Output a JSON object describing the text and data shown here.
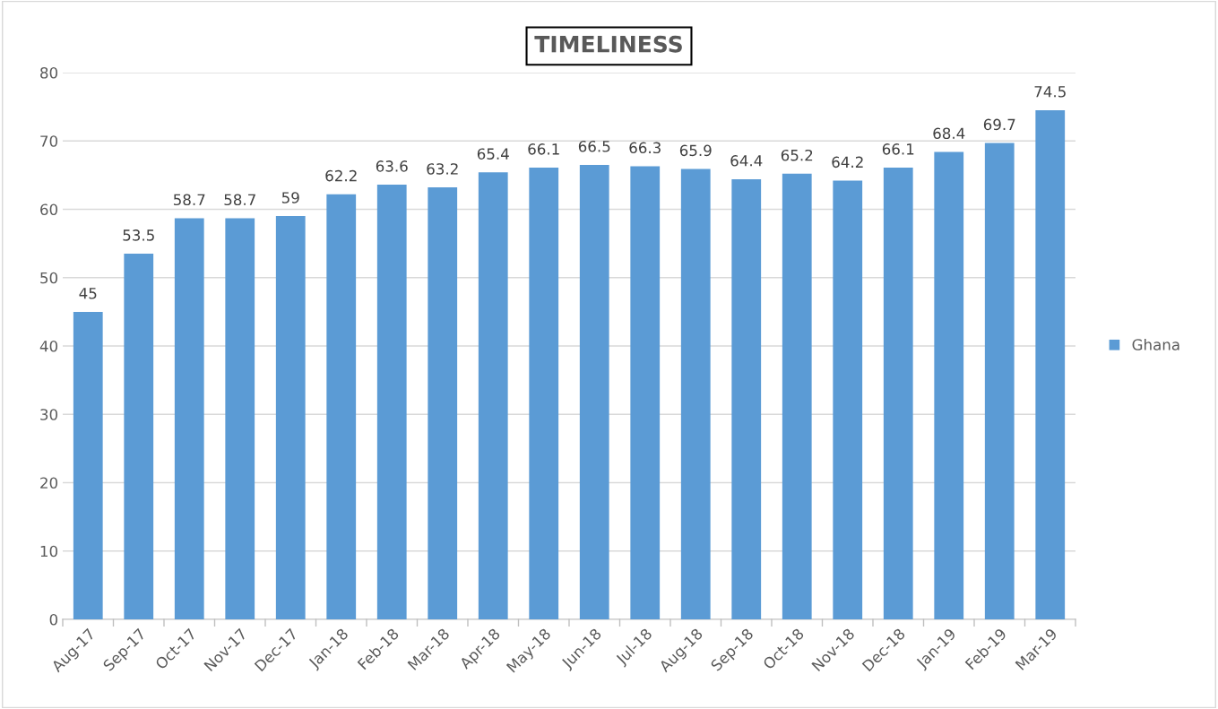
{
  "chart_data": {
    "type": "bar",
    "title": "TIMELINESS",
    "categories": [
      "Aug-17",
      "Sep-17",
      "Oct-17",
      "Nov-17",
      "Dec-17",
      "Jan-18",
      "Feb-18",
      "Mar-18",
      "Apr-18",
      "May-18",
      "Jun-18",
      "Jul-18",
      "Aug-18",
      "Sep-18",
      "Oct-18",
      "Nov-18",
      "Dec-18",
      "Jan-19",
      "Feb-19",
      "Mar-19"
    ],
    "series": [
      {
        "name": "Ghana",
        "color": "#5b9bd5",
        "values": [
          45,
          53.5,
          58.7,
          58.7,
          59,
          62.2,
          63.6,
          63.2,
          65.4,
          66.1,
          66.5,
          66.3,
          65.9,
          64.4,
          65.2,
          64.2,
          66.1,
          68.4,
          69.7,
          74.5
        ]
      }
    ],
    "ylim": [
      0,
      80
    ],
    "yticks": [
      0,
      10,
      20,
      30,
      40,
      50,
      60,
      70,
      80
    ],
    "grid": "y",
    "legend": "right",
    "data_labels": true
  }
}
